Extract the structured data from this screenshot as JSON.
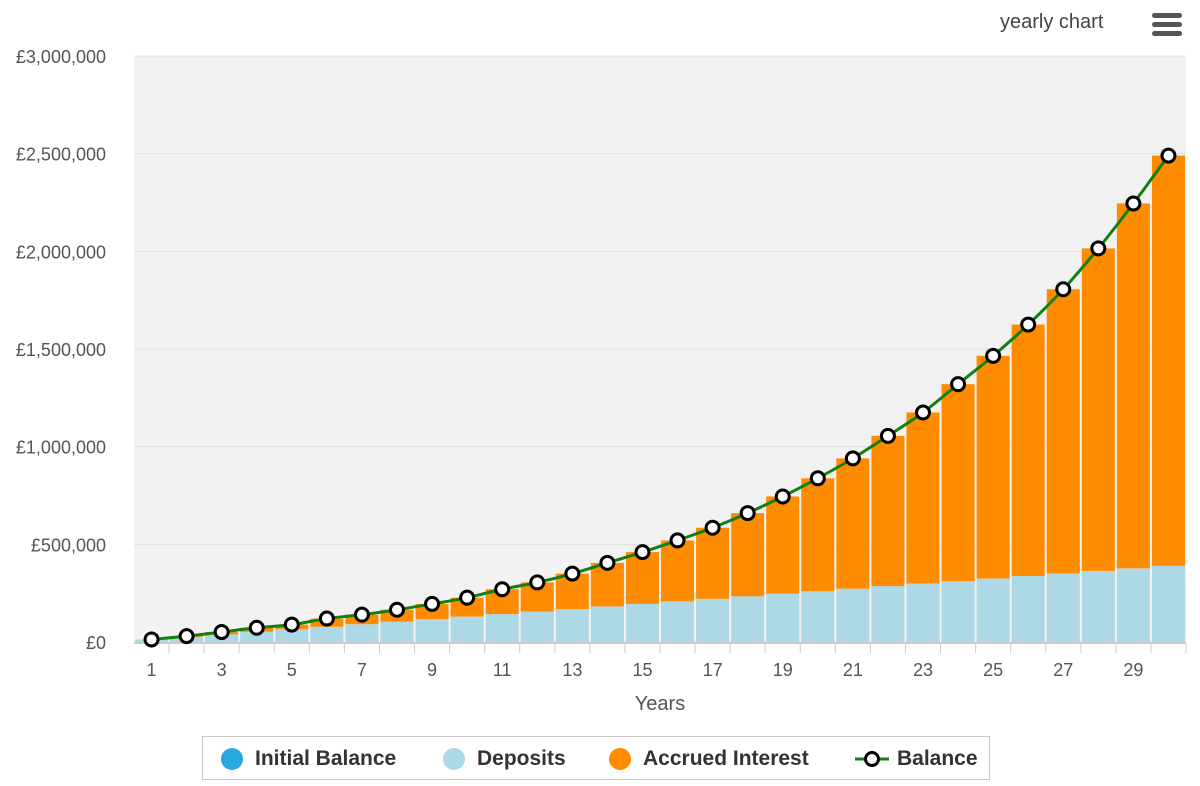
{
  "header": {
    "label": "yearly chart",
    "menu_icon": "hamburger-menu-icon"
  },
  "colors": {
    "initial_balance": "#29a8e0",
    "deposits": "#add8e6",
    "accrued_interest": "#ff8c00",
    "balance_line": "#118011",
    "plot_background": "#f2f2f2",
    "grid": "#e0e0e0"
  },
  "chart_data": {
    "type": "bar",
    "stacked": true,
    "xlabel": "Years",
    "ylabel": "",
    "ylim": [
      0,
      3000000
    ],
    "y_ticks": [
      0,
      500000,
      1000000,
      1500000,
      2000000,
      2500000,
      3000000
    ],
    "y_tick_labels": [
      "£0",
      "£500,000",
      "£1,000,000",
      "£1,500,000",
      "£2,000,000",
      "£2,500,000",
      "£3,000,000"
    ],
    "categories": [
      1,
      2,
      3,
      4,
      5,
      6,
      7,
      8,
      9,
      10,
      11,
      12,
      13,
      14,
      15,
      16,
      17,
      18,
      19,
      20,
      21,
      22,
      23,
      24,
      25,
      26,
      27,
      28,
      29,
      30
    ],
    "x_tick_labels": [
      "1",
      "3",
      "5",
      "7",
      "9",
      "11",
      "13",
      "15",
      "17",
      "19",
      "21",
      "23",
      "25",
      "27",
      "29"
    ],
    "x_tick_label_categories": [
      1,
      3,
      5,
      7,
      9,
      11,
      13,
      15,
      17,
      19,
      21,
      23,
      25,
      27,
      29
    ],
    "grid": true,
    "legend_position": "bottom",
    "series": [
      {
        "name": "Initial Balance",
        "kind": "bar",
        "values": [
          0,
          0,
          0,
          0,
          0,
          0,
          0,
          0,
          0,
          0,
          0,
          0,
          0,
          0,
          0,
          0,
          0,
          0,
          0,
          0,
          0,
          0,
          0,
          0,
          0,
          0,
          0,
          0,
          0,
          0
        ]
      },
      {
        "name": "Deposits",
        "kind": "bar",
        "values": [
          13000,
          26000,
          39000,
          52000,
          65000,
          78000,
          91000,
          104000,
          117000,
          130000,
          143000,
          156000,
          169000,
          182000,
          195000,
          208000,
          221000,
          234000,
          247000,
          260000,
          273000,
          286000,
          299000,
          312000,
          325000,
          338000,
          351000,
          364000,
          377000,
          390000
        ]
      },
      {
        "name": "Accrued Interest",
        "kind": "bar",
        "values": [
          0,
          4000,
          12000,
          21000,
          24000,
          42000,
          49000,
          61000,
          78000,
          97000,
          127000,
          149000,
          181000,
          223000,
          265000,
          312000,
          364000,
          426000,
          498000,
          578000,
          667000,
          769000,
          876000,
          1008000,
          1140000,
          1287000,
          1455000,
          1651000,
          1868000,
          2100000
        ]
      },
      {
        "name": "Balance",
        "kind": "line",
        "values": [
          13000,
          30000,
          51000,
          73000,
          89000,
          120000,
          140000,
          165000,
          195000,
          227000,
          270000,
          305000,
          350000,
          405000,
          460000,
          520000,
          585000,
          660000,
          745000,
          838000,
          940000,
          1055000,
          1175000,
          1320000,
          1465000,
          1625000,
          1806000,
          2015000,
          2245000,
          2490000
        ]
      }
    ]
  }
}
